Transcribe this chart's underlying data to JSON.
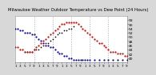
{
  "title": "Milwaukee Weather Outdoor Temperature vs Dew Point (24 Hours)",
  "title_fontsize": 3.8,
  "background_color": "#d8d8d8",
  "plot_bg_color": "#ffffff",
  "xlim": [
    0,
    96
  ],
  "ylim": [
    38,
    60
  ],
  "yticks": [
    40,
    42,
    44,
    46,
    48,
    50,
    52,
    54,
    56,
    58
  ],
  "ytick_labels": [
    "40",
    "42",
    "44",
    "46",
    "48",
    "50",
    "52",
    "54",
    "56",
    "58"
  ],
  "ytick_fontsize": 3.2,
  "xtick_fontsize": 3.0,
  "xtick_positions": [
    0,
    4,
    8,
    12,
    16,
    20,
    24,
    28,
    32,
    36,
    40,
    44,
    48,
    52,
    56,
    60,
    64,
    68,
    72,
    76,
    80,
    84,
    88,
    92,
    96
  ],
  "xtick_labels": [
    "1",
    "3",
    "5",
    "7",
    "9",
    "1",
    "3",
    "5",
    "7",
    "9",
    "1",
    "3",
    "5",
    "7",
    "9",
    "1",
    "3",
    "5",
    "7",
    "9",
    "1",
    "3",
    "5",
    "7",
    "9"
  ],
  "vgrid_x": [
    16,
    32,
    48,
    64,
    80,
    96
  ],
  "grid_color": "#aaaaaa",
  "temp_color": "#dd0000",
  "dew_color": "#0000cc",
  "black_color": "#000000",
  "dot_size": 2.5,
  "temp_x": [
    0,
    2,
    4,
    6,
    8,
    10,
    12,
    14,
    16,
    18,
    20,
    22,
    24,
    26,
    28,
    30,
    32,
    34,
    36,
    38,
    40,
    42,
    44,
    46,
    48,
    50,
    52,
    54,
    56,
    58,
    60,
    62,
    64,
    66,
    68,
    70,
    72,
    74,
    76,
    78,
    80,
    82,
    84,
    86,
    88,
    90,
    92,
    94,
    96
  ],
  "temp_y": [
    45,
    45,
    44,
    44,
    43,
    43,
    43,
    43,
    44,
    45,
    46,
    47,
    48,
    49,
    50,
    51,
    52,
    53,
    54,
    55,
    56,
    56,
    57,
    57,
    57,
    57,
    57,
    56,
    55,
    54,
    53,
    52,
    51,
    50,
    49,
    48,
    47,
    47,
    46,
    45,
    44,
    43,
    43,
    43,
    42,
    42,
    42,
    41,
    41
  ],
  "dew_x": [
    0,
    2,
    4,
    6,
    8,
    10,
    12,
    14,
    16,
    18,
    20,
    22,
    24,
    26,
    28,
    30,
    32,
    34,
    36,
    38,
    40,
    42,
    44,
    46,
    48,
    50,
    52,
    54,
    56,
    58,
    60,
    62,
    64,
    68,
    72,
    76,
    80,
    84,
    88,
    92,
    96
  ],
  "dew_y": [
    54,
    54,
    53,
    53,
    52,
    52,
    52,
    51,
    51,
    50,
    49,
    48,
    47,
    46,
    46,
    45,
    45,
    44,
    43,
    42,
    42,
    41,
    41,
    40,
    40,
    39,
    39,
    39,
    39,
    39,
    39,
    39,
    39,
    39,
    39,
    39,
    39,
    39,
    39,
    39,
    39
  ],
  "black_x": [
    8,
    10,
    12,
    14,
    16,
    18,
    20,
    22,
    24,
    26,
    28,
    30,
    32,
    34,
    36,
    38,
    40,
    42,
    44,
    46,
    48,
    50
  ],
  "black_y": [
    43,
    43,
    43,
    43,
    44,
    44,
    44,
    45,
    46,
    47,
    47,
    48,
    49,
    50,
    51,
    52,
    52,
    53,
    53,
    54,
    54,
    55
  ]
}
